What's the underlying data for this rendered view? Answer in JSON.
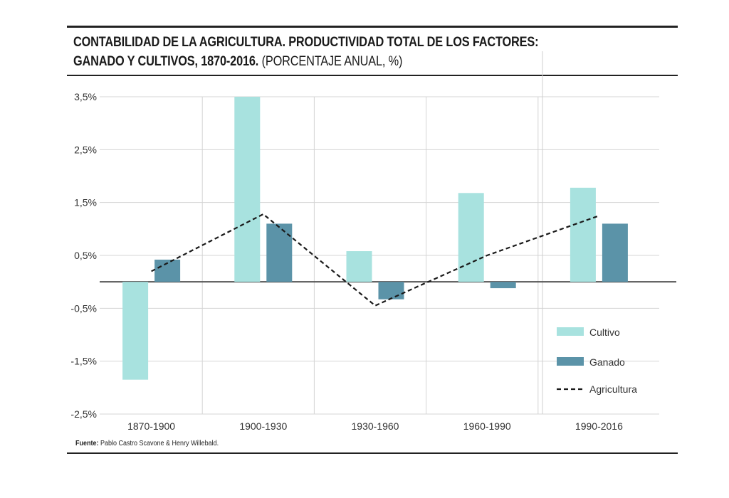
{
  "title": "CONTABILIDAD DE LA AGRICULTURA. PRODUCTIVIDAD TOTAL DE LOS FACTORES:",
  "title_line2": "GANADO Y CULTIVOS, 1870-2016.",
  "subtitle": "(PORCENTAJE ANUAL, %)",
  "source_label": "Fuente:",
  "source_text": "Pablo Castro Scavone & Henry Willebald.",
  "chart_data": {
    "type": "bar",
    "categories": [
      "1870-1900",
      "1900-1930",
      "1930-1960",
      "1960-1990",
      "1990-2016"
    ],
    "series": [
      {
        "name": "Cultivo",
        "type": "bar",
        "color": "#a8e2df",
        "values": [
          -1.85,
          3.5,
          0.58,
          1.68,
          1.78
        ]
      },
      {
        "name": "Ganado",
        "type": "bar",
        "color": "#5b93a8",
        "values": [
          0.42,
          1.1,
          -0.33,
          -0.12,
          1.1
        ]
      },
      {
        "name": "Agricultura",
        "type": "line",
        "style": "dashed",
        "color": "#1a1a1a",
        "values": [
          0.2,
          1.28,
          -0.45,
          0.5,
          1.25
        ]
      }
    ],
    "yticks": [
      "3,5%",
      "2,5%",
      "1,5%",
      "0,5%",
      "-0,5%",
      "-1,5%",
      "-2,5%"
    ],
    "ytick_values": [
      3.5,
      2.5,
      1.5,
      0.5,
      -0.5,
      -1.5,
      -2.5
    ],
    "ylim": [
      -2.5,
      3.5
    ],
    "grid": true,
    "legend_position": "bottom-right"
  }
}
